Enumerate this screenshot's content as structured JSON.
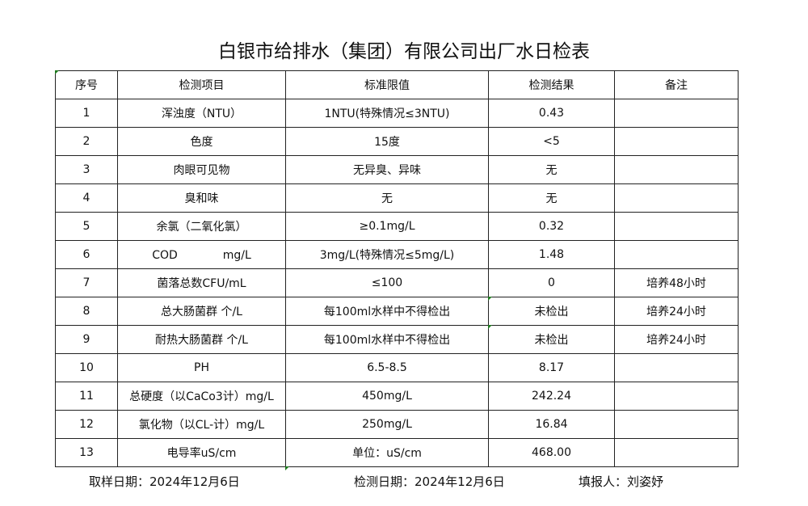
{
  "title": "白银市给排水（集团）有限公司出厂水日检表",
  "columns": [
    "序号",
    "检测项目",
    "标准限值",
    "检测结果",
    "备注"
  ],
  "rows": [
    [
      "1",
      "浑浊度（NTU）",
      "1NTU(特殊情况≤3NTU)",
      "0.43",
      ""
    ],
    [
      "2",
      "色度",
      "15度",
      "<5",
      ""
    ],
    [
      "3",
      "肉眼可见物",
      "无异臭、异味",
      "无",
      ""
    ],
    [
      "4",
      "臭和味",
      "无",
      "无",
      ""
    ],
    [
      "5",
      "余氯（二氧化氯）",
      "≥0.1mg/L",
      "0.32",
      ""
    ],
    [
      "6",
      "COD　　　　mg/L",
      "3mg/L(特殊情况≤5mg/L)",
      "1.48",
      ""
    ],
    [
      "7",
      "菌落总数CFU/mL",
      "≤100",
      "0",
      "培养48小时"
    ],
    [
      "8",
      "总大肠菌群 个/L",
      "每100ml水样中不得检出",
      "未检出",
      "培养24小时"
    ],
    [
      "9",
      "耐热大肠菌群 个/L",
      "每100ml水样中不得检出",
      "未检出",
      "培养24小时"
    ],
    [
      "10",
      "PH",
      "6.5-8.5",
      "8.17",
      ""
    ],
    [
      "11",
      "总硬度（以CaCo3计）mg/L",
      "450mg/L",
      "242.24",
      ""
    ],
    [
      "12",
      "氯化物（以CL-计）mg/L",
      "250mg/L",
      "16.84",
      ""
    ],
    [
      "13",
      "电导率uS/cm",
      "单位：uS/cm",
      "468.00",
      ""
    ]
  ],
  "footer": {
    "sampling_date": "取样日期：2024年12月6日",
    "test_date": "检测日期：2024年12月6日",
    "filled_by": "填报人：刘姿妤"
  }
}
